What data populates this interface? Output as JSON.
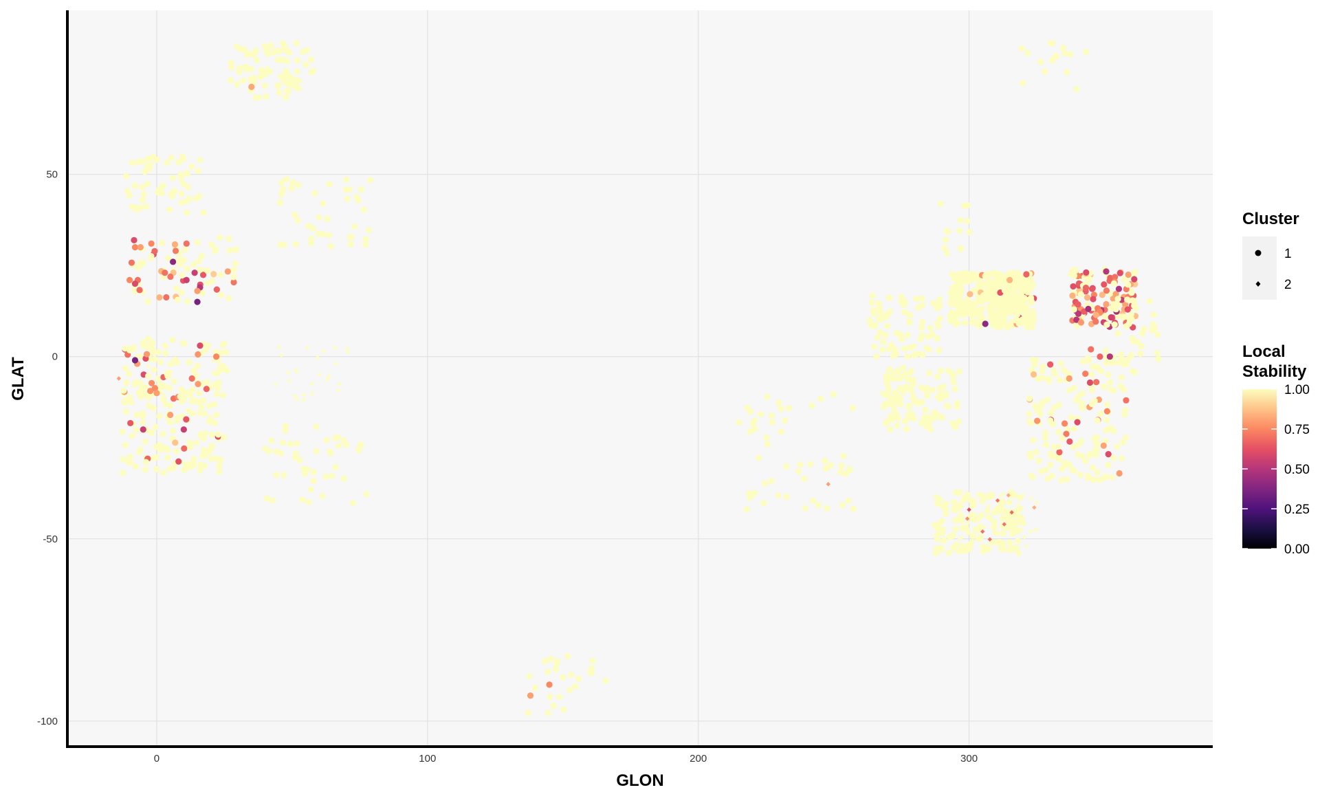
{
  "chart_data": {
    "type": "scatter",
    "xlabel": "GLON",
    "ylabel": "GLAT",
    "xlim": [
      -33,
      390
    ],
    "ylim": [
      -107,
      95
    ],
    "x_ticks": [
      0,
      100,
      200,
      300
    ],
    "y_ticks": [
      -100,
      -50,
      0,
      50
    ],
    "x_tick_labels": [
      "0",
      "100",
      "200",
      "300"
    ],
    "y_tick_labels": [
      "-100",
      "-50",
      "0",
      "50"
    ],
    "grid": true,
    "legend_placement": "right",
    "legend": {
      "cluster_title": "Cluster",
      "cluster_entries": [
        {
          "label": "1",
          "shape": "circle"
        },
        {
          "label": "2",
          "shape": "diamond"
        }
      ],
      "stability_title_line1": "Local",
      "stability_title_line2": "Stability",
      "stability_ticks": [
        {
          "value": 1.0,
          "label": "1.00"
        },
        {
          "value": 0.75,
          "label": "0.75"
        },
        {
          "value": 0.5,
          "label": "0.50"
        },
        {
          "value": 0.25,
          "label": "0.25"
        },
        {
          "value": 0.0,
          "label": "0.00"
        }
      ]
    },
    "colorscale": [
      "#000004",
      "#1c1044",
      "#4f127b",
      "#812581",
      "#b5367a",
      "#e55064",
      "#fb8761",
      "#fec287",
      "#fcfdbf"
    ],
    "background_color": "#f7f7f7",
    "grid_color": "#e3e3e3",
    "groups": [
      {
        "cluster": 1,
        "x": [
          27,
          58
        ],
        "y": [
          71,
          86
        ],
        "n": 80,
        "stability": 1.0
      },
      {
        "cluster": 1,
        "x": [
          -12,
          18
        ],
        "y": [
          39,
          55
        ],
        "n": 55,
        "stability": 1.0
      },
      {
        "cluster": 1,
        "x": [
          -10,
          30
        ],
        "y": [
          15,
          33
        ],
        "n": 75,
        "stability": 0.92
      },
      {
        "cluster": 1,
        "x": [
          -13,
          26
        ],
        "y": [
          -32,
          5
        ],
        "n": 230,
        "stability": 0.95
      },
      {
        "cluster": 1,
        "x": [
          45,
          79
        ],
        "y": [
          30,
          49
        ],
        "n": 45,
        "stability": 1.0
      },
      {
        "cluster": 1,
        "x": [
          40,
          79
        ],
        "y": [
          -42,
          -19
        ],
        "n": 45,
        "stability": 1.0
      },
      {
        "cluster": 1,
        "x": [
          137,
          166
        ],
        "y": [
          -98,
          -82
        ],
        "n": 25,
        "stability": 0.97
      },
      {
        "cluster": 1,
        "x": [
          213,
          258
        ],
        "y": [
          -42,
          -10
        ],
        "n": 55,
        "stability": 1.0
      },
      {
        "cluster": 1,
        "x": [
          287,
          302
        ],
        "y": [
          28,
          42
        ],
        "n": 14,
        "stability": 1.0
      },
      {
        "cluster": 1,
        "x": [
          263,
          290
        ],
        "y": [
          0,
          17
        ],
        "n": 80,
        "stability": 1.0
      },
      {
        "cluster": 1,
        "x": [
          293,
          324
        ],
        "y": [
          8,
          23
        ],
        "n": 380,
        "stability": 0.99
      },
      {
        "cluster": 1,
        "x": [
          337,
          362
        ],
        "y": [
          8,
          24
        ],
        "n": 140,
        "stability": 0.75
      },
      {
        "cluster": 1,
        "x": [
          350,
          370
        ],
        "y": [
          -5,
          16
        ],
        "n": 35,
        "stability": 1.0
      },
      {
        "cluster": 1,
        "x": [
          268,
          297
        ],
        "y": [
          -20,
          -3
        ],
        "n": 110,
        "stability": 1.0
      },
      {
        "cluster": 1,
        "x": [
          322,
          358
        ],
        "y": [
          -34,
          0
        ],
        "n": 170,
        "stability": 0.96
      },
      {
        "cluster": 1,
        "x": [
          287,
          320
        ],
        "y": [
          -54,
          -37
        ],
        "n": 140,
        "stability": 1.0
      },
      {
        "cluster": 1,
        "x": [
          318,
          346
        ],
        "y": [
          73,
          87
        ],
        "n": 18,
        "stability": 1.0
      },
      {
        "cluster": 2,
        "x": [
          -15,
          35
        ],
        "y": [
          -12,
          3
        ],
        "n": 10,
        "stability": 0.98
      },
      {
        "cluster": 2,
        "x": [
          43,
          71
        ],
        "y": [
          -12,
          3
        ],
        "n": 25,
        "stability": 1.0
      },
      {
        "cluster": 2,
        "x": [
          296,
          326
        ],
        "y": [
          -54,
          -37
        ],
        "n": 60,
        "stability": 0.97
      }
    ],
    "highlighted_points": [
      {
        "x": -8,
        "y": 30,
        "stability": 0.75,
        "cluster": 1
      },
      {
        "x": -6,
        "y": 30,
        "stability": 0.8,
        "cluster": 1
      },
      {
        "x": -2,
        "y": 31,
        "stability": 0.75,
        "cluster": 1
      },
      {
        "x": 7,
        "y": 29,
        "stability": 0.72,
        "cluster": 1
      },
      {
        "x": 11,
        "y": 31,
        "stability": 0.7,
        "cluster": 1
      },
      {
        "x": 6,
        "y": 26,
        "stability": 0.4,
        "cluster": 1
      },
      {
        "x": -10,
        "y": 21,
        "stability": 0.75,
        "cluster": 1
      },
      {
        "x": -7,
        "y": 21,
        "stability": 0.7,
        "cluster": 1
      },
      {
        "x": -8,
        "y": 20,
        "stability": 0.6,
        "cluster": 1
      },
      {
        "x": 3,
        "y": 23,
        "stability": 0.7,
        "cluster": 1
      },
      {
        "x": 11,
        "y": 21,
        "stability": 0.55,
        "cluster": 1
      },
      {
        "x": 14,
        "y": 23,
        "stability": 0.55,
        "cluster": 1
      },
      {
        "x": 16,
        "y": 19,
        "stability": 0.5,
        "cluster": 1
      },
      {
        "x": 15,
        "y": 15,
        "stability": 0.35,
        "cluster": 1
      },
      {
        "x": 15,
        "y": 18,
        "stability": 0.8,
        "cluster": 1
      },
      {
        "x": 16,
        "y": 3,
        "stability": 0.6,
        "cluster": 1
      },
      {
        "x": -8,
        "y": -1,
        "stability": 0.35,
        "cluster": 1
      },
      {
        "x": 0,
        "y": -10,
        "stability": 0.8,
        "cluster": 1
      },
      {
        "x": 13,
        "y": -6,
        "stability": 0.7,
        "cluster": 1
      },
      {
        "x": 5,
        "y": -16,
        "stability": 0.8,
        "cluster": 1
      },
      {
        "x": -5,
        "y": -20,
        "stability": 0.55,
        "cluster": 1
      },
      {
        "x": 10,
        "y": -20,
        "stability": 0.55,
        "cluster": 1
      },
      {
        "x": 22,
        "y": 0,
        "stability": 0.75,
        "cluster": 1
      },
      {
        "x": 35,
        "y": 74,
        "stability": 0.82,
        "cluster": 1
      },
      {
        "x": 145,
        "y": -90,
        "stability": 0.75,
        "cluster": 1
      },
      {
        "x": 138,
        "y": -93,
        "stability": 0.8,
        "cluster": 1
      },
      {
        "x": 300,
        "y": -42,
        "stability": 0.6,
        "cluster": 2
      },
      {
        "x": 313,
        "y": -46,
        "stability": 0.7,
        "cluster": 2
      },
      {
        "x": 305,
        "y": -48,
        "stability": 0.7,
        "cluster": 2
      },
      {
        "x": 315,
        "y": 21,
        "stability": 0.85,
        "cluster": 1
      },
      {
        "x": 306,
        "y": 9,
        "stability": 0.4,
        "cluster": 1
      },
      {
        "x": 352,
        "y": 0,
        "stability": 0.5,
        "cluster": 1
      },
      {
        "x": 345,
        "y": 2,
        "stability": 0.7,
        "cluster": 1
      },
      {
        "x": 347,
        "y": -7,
        "stability": 0.7,
        "cluster": 1
      },
      {
        "x": 358,
        "y": -12,
        "stability": 0.7,
        "cluster": 1
      },
      {
        "x": 337,
        "y": -6,
        "stability": 0.8,
        "cluster": 1
      },
      {
        "x": 340,
        "y": -18,
        "stability": 0.6,
        "cluster": 1
      },
      {
        "x": 351,
        "y": -15,
        "stability": 0.75,
        "cluster": 1
      },
      {
        "x": 248,
        "y": -35,
        "stability": 0.8,
        "cluster": 2
      },
      {
        "x": -14,
        "y": -6,
        "stability": 0.8,
        "cluster": 2
      }
    ]
  }
}
